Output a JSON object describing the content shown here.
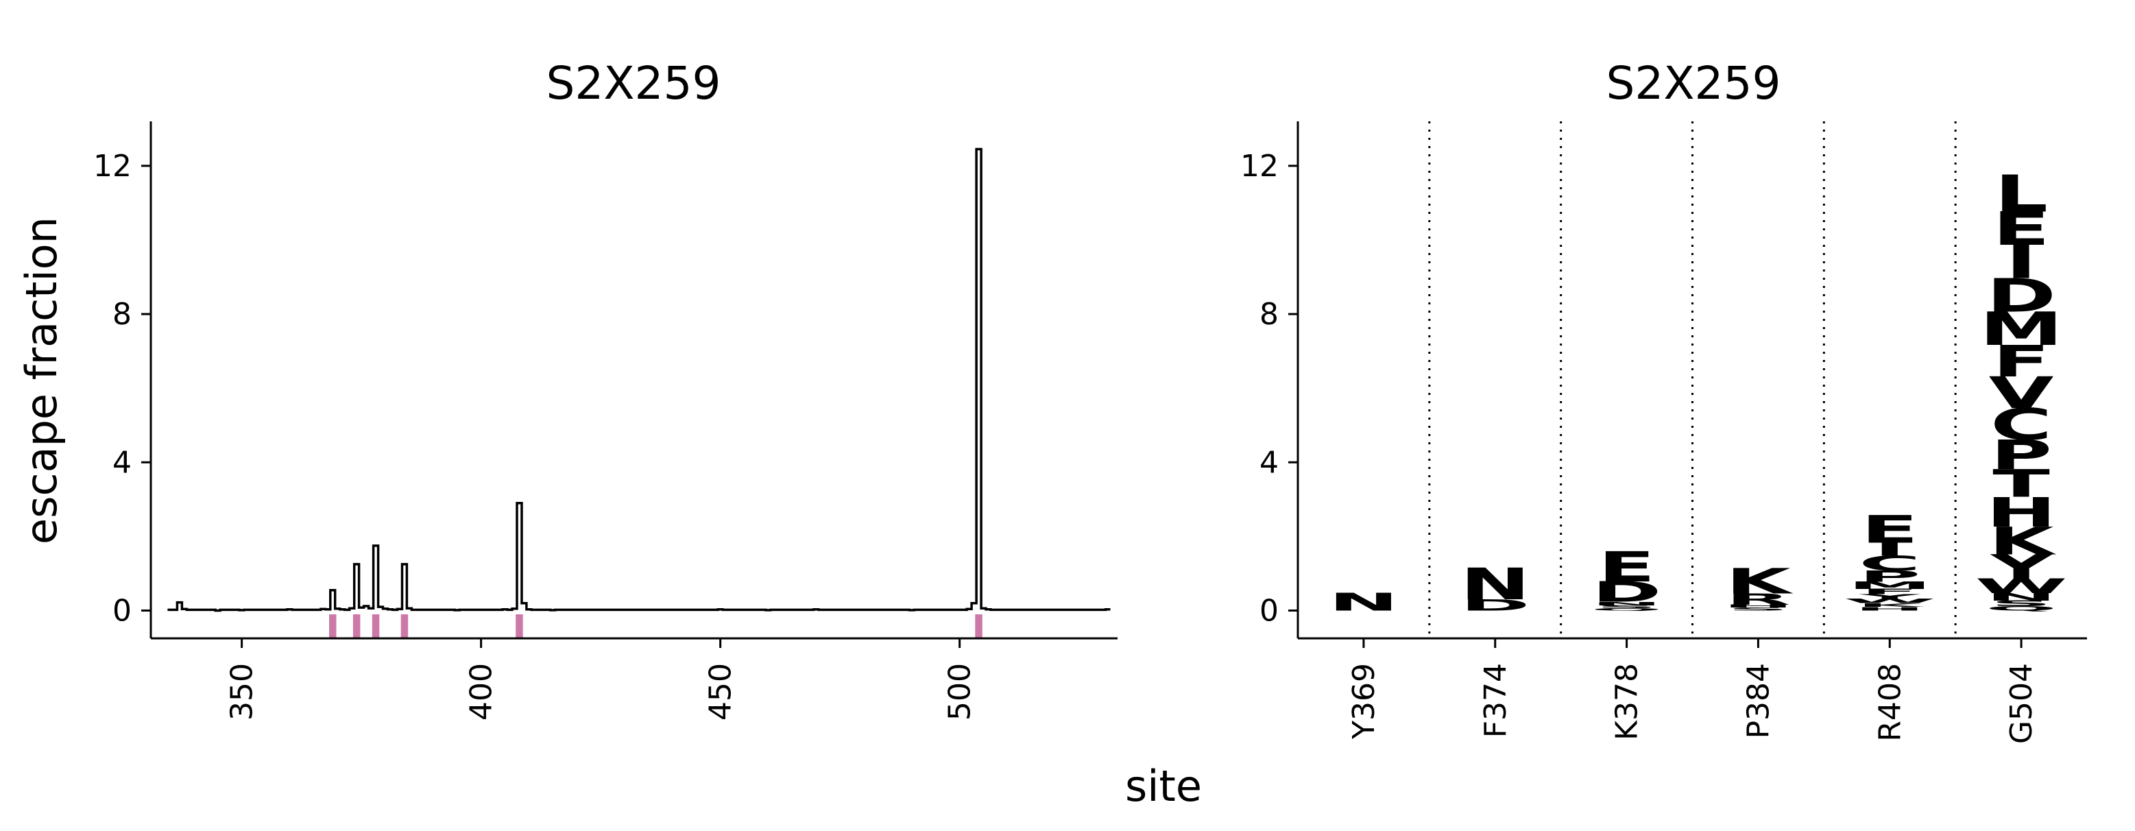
{
  "figure": {
    "shared_ylabel": "escape fraction",
    "shared_xlabel": "site"
  },
  "chart_data": [
    {
      "type": "line",
      "title": "S2X259",
      "xlabel": "",
      "ylabel": "escape fraction",
      "xlim": [
        331,
        533
      ],
      "ylim": [
        -0.75,
        13.2
      ],
      "x_ticks": [
        350,
        400,
        450,
        500
      ],
      "y_ticks": [
        0,
        4,
        8,
        12
      ],
      "grid": false,
      "line_color": "#000000",
      "baseline_value": 0.02,
      "from_site": 335,
      "to_site": 531,
      "series": [
        {
          "points": [
            [
              335,
              0.02
            ],
            [
              336,
              0.02
            ],
            [
              337,
              0.22
            ],
            [
              338,
              0.04
            ],
            [
              340,
              0.02
            ],
            [
              345,
              0.0
            ],
            [
              350,
              0.01
            ],
            [
              355,
              0.02
            ],
            [
              360,
              0.03
            ],
            [
              365,
              0.02
            ],
            [
              367,
              0.04
            ],
            [
              368,
              0.03
            ],
            [
              369,
              0.55
            ],
            [
              370,
              0.05
            ],
            [
              371,
              0.03
            ],
            [
              372,
              0.02
            ],
            [
              373,
              0.06
            ],
            [
              374,
              1.25
            ],
            [
              375,
              0.08
            ],
            [
              376,
              0.12
            ],
            [
              377,
              0.06
            ],
            [
              378,
              1.75
            ],
            [
              379,
              0.1
            ],
            [
              380,
              0.05
            ],
            [
              381,
              0.03
            ],
            [
              382,
              0.02
            ],
            [
              383,
              0.04
            ],
            [
              384,
              1.25
            ],
            [
              385,
              0.06
            ],
            [
              386,
              0.02
            ],
            [
              390,
              0.02
            ],
            [
              395,
              0.01
            ],
            [
              400,
              0.02
            ],
            [
              405,
              0.03
            ],
            [
              407,
              0.05
            ],
            [
              408,
              2.9
            ],
            [
              409,
              0.2
            ],
            [
              410,
              0.03
            ],
            [
              415,
              0.01
            ],
            [
              420,
              0.02
            ],
            [
              430,
              0.02
            ],
            [
              440,
              0.02
            ],
            [
              450,
              0.03
            ],
            [
              460,
              0.01
            ],
            [
              470,
              0.03
            ],
            [
              480,
              0.02
            ],
            [
              490,
              0.01
            ],
            [
              500,
              0.02
            ],
            [
              502,
              0.04
            ],
            [
              503,
              0.2
            ],
            [
              504,
              12.45
            ],
            [
              505,
              0.06
            ],
            [
              506,
              0.03
            ],
            [
              510,
              0.02
            ],
            [
              520,
              0.02
            ],
            [
              531,
              0.03
            ]
          ]
        }
      ],
      "highlighted_sites": [
        369,
        374,
        378,
        384,
        408,
        504
      ],
      "highlight_color": "#cc79a7"
    },
    {
      "type": "logo",
      "title": "S2X259",
      "xlabel": "",
      "ylabel": "",
      "ylim": [
        -0.75,
        13.2
      ],
      "y_ticks": [
        0,
        4,
        8,
        12
      ],
      "grid": false,
      "separator_style": "dotted",
      "categories": [
        "Y369",
        "F374",
        "K378",
        "P384",
        "R408",
        "G504"
      ],
      "stacks": [
        [
          {
            "letter": "N",
            "value": 0.48,
            "color": "#662506"
          }
        ],
        [
          {
            "letter": "D",
            "value": 0.3,
            "color": "#fe9929"
          },
          {
            "letter": "N",
            "value": 0.85,
            "color": "#cc4c02"
          }
        ],
        [
          {
            "letter": "Q",
            "value": 0.06,
            "color": "#cc4c02"
          },
          {
            "letter": "S",
            "value": 0.08,
            "color": "#ec7014"
          },
          {
            "letter": "N",
            "value": 0.1,
            "color": "#cc4c02"
          },
          {
            "letter": "D",
            "value": 0.55,
            "color": "#993404"
          },
          {
            "letter": "E",
            "value": 0.82,
            "color": "#662506"
          }
        ],
        [
          {
            "letter": "S",
            "value": 0.08,
            "color": "#ec7014"
          },
          {
            "letter": "H",
            "value": 0.08,
            "color": "#993404"
          },
          {
            "letter": "R",
            "value": 0.3,
            "color": "#662506"
          },
          {
            "letter": "K",
            "value": 0.68,
            "color": "#662506"
          }
        ],
        [
          {
            "letter": "H",
            "value": 0.1,
            "color": "#993404"
          },
          {
            "letter": "K",
            "value": 0.1,
            "color": "#662506"
          },
          {
            "letter": "W",
            "value": 0.12,
            "color": "#fe9929"
          },
          {
            "letter": "Y",
            "value": 0.12,
            "color": "#fec44f"
          },
          {
            "letter": "F",
            "value": 0.14,
            "color": "#fe9929"
          },
          {
            "letter": "M",
            "value": 0.2,
            "color": "#662506"
          },
          {
            "letter": "P",
            "value": 0.3,
            "color": "#993404"
          },
          {
            "letter": "C",
            "value": 0.4,
            "color": "#cc4c02"
          },
          {
            "letter": "I",
            "value": 0.35,
            "color": "#662506"
          },
          {
            "letter": "E",
            "value": 0.75,
            "color": "#662506"
          }
        ],
        [
          {
            "letter": "Q",
            "value": 0.12,
            "color": "#cc4c02"
          },
          {
            "letter": "S",
            "value": 0.15,
            "color": "#ec7014"
          },
          {
            "letter": "N",
            "value": 0.2,
            "color": "#cc4c02"
          },
          {
            "letter": "W",
            "value": 0.4,
            "color": "#fe9929"
          },
          {
            "letter": "Y",
            "value": 0.65,
            "color": "#fec44f"
          },
          {
            "letter": "K",
            "value": 0.75,
            "color": "#662506"
          },
          {
            "letter": "H",
            "value": 0.8,
            "color": "#993404"
          },
          {
            "letter": "T",
            "value": 0.75,
            "color": "#662506"
          },
          {
            "letter": "P",
            "value": 0.8,
            "color": "#993404"
          },
          {
            "letter": "C",
            "value": 0.85,
            "color": "#ec7014"
          },
          {
            "letter": "V",
            "value": 0.85,
            "color": "#ec7014"
          },
          {
            "letter": "F",
            "value": 0.85,
            "color": "#fe9929"
          },
          {
            "letter": "M",
            "value": 0.9,
            "color": "#662506"
          },
          {
            "letter": "D",
            "value": 0.9,
            "color": "#662506"
          },
          {
            "letter": "I",
            "value": 0.9,
            "color": "#cc4c02"
          },
          {
            "letter": "E",
            "value": 0.9,
            "color": "#993404"
          },
          {
            "letter": "L",
            "value": 1.0,
            "color": "#662506"
          }
        ]
      ]
    }
  ]
}
